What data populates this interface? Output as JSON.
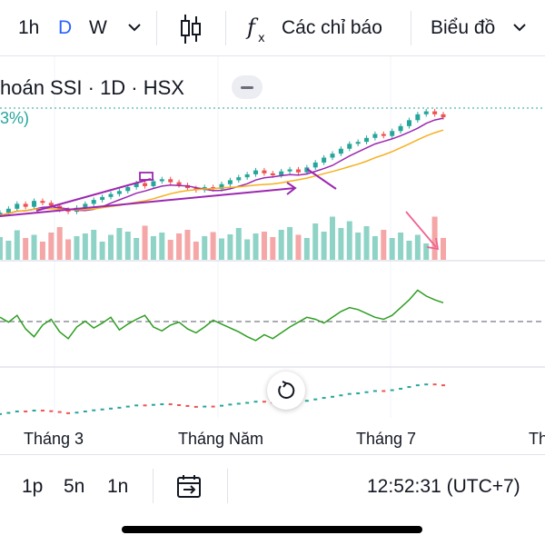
{
  "toolbar": {
    "interval_1h": "1h",
    "interval_d": "D",
    "interval_w": "W",
    "more_intervals_icon": "chevron-down-icon",
    "chart_type_icon": "candlestick-icon",
    "indicators_icon": "fx-icon",
    "indicators_label": "Các chỉ báo",
    "chart_menu_label": "Biểu đồ",
    "chart_menu_icon": "chevron-down-icon"
  },
  "legend": {
    "title": "hoán SSI · 1D · HSX",
    "percent": "3%)"
  },
  "time_axis": {
    "labels": [
      "Tháng 3",
      "Tháng Năm",
      "Tháng 7",
      "Th"
    ]
  },
  "bottom_bar": {
    "range_1p": "1p",
    "range_5n": "5n",
    "range_1n": "1n",
    "goto_date_icon": "calendar-goto-icon",
    "clock": "12:52:31 (UTC+7)"
  },
  "colors": {
    "up": "#26a69a",
    "down": "#ef5350",
    "ma_fast": "#9c27b0",
    "ma_slow": "#f6b01f",
    "rsi": "#2e9e22",
    "drawing": "#9c27b0",
    "accent": "#2962ff"
  },
  "chart_data": {
    "type": "candlestick",
    "symbol": "SSI",
    "interval": "1D",
    "exchange": "HSX",
    "price_close": [
      24.0,
      24.4,
      24.9,
      24.6,
      25.2,
      25.0,
      24.7,
      24.3,
      24.1,
      24.5,
      24.9,
      25.3,
      25.6,
      25.9,
      26.2,
      26.6,
      27.0,
      26.7,
      27.2,
      27.4,
      27.1,
      26.8,
      26.5,
      26.3,
      26.6,
      26.4,
      26.9,
      27.3,
      27.6,
      27.9,
      28.3,
      28.0,
      27.8,
      28.2,
      28.4,
      28.1,
      28.6,
      29.1,
      29.6,
      30.0,
      30.5,
      31.0,
      31.2,
      31.6,
      32.0,
      31.8,
      32.3,
      32.8,
      33.4,
      34.0,
      34.3,
      34.0,
      33.7
    ],
    "volume": [
      50,
      42,
      65,
      48,
      55,
      40,
      60,
      72,
      45,
      52,
      58,
      66,
      40,
      55,
      70,
      62,
      48,
      75,
      52,
      60,
      44,
      58,
      66,
      40,
      52,
      61,
      47,
      56,
      70,
      45,
      58,
      62,
      50,
      66,
      72,
      55,
      48,
      80,
      62,
      95,
      70,
      85,
      60,
      74,
      52,
      66,
      48,
      60,
      42,
      55,
      36,
      95,
      48
    ],
    "rsi": [
      60,
      55,
      62,
      48,
      40,
      52,
      58,
      45,
      38,
      50,
      56,
      49,
      54,
      60,
      47,
      53,
      58,
      62,
      50,
      46,
      52,
      55,
      48,
      44,
      50,
      57,
      53,
      49,
      45,
      40,
      36,
      42,
      38,
      44,
      50,
      55,
      60,
      58,
      54,
      60,
      66,
      70,
      68,
      64,
      60,
      58,
      62,
      70,
      78,
      88,
      82,
      78,
      75
    ]
  }
}
